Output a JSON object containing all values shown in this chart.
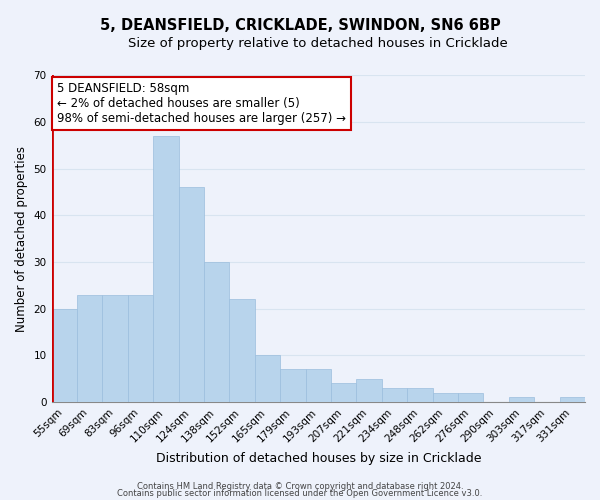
{
  "title": "5, DEANSFIELD, CRICKLADE, SWINDON, SN6 6BP",
  "subtitle": "Size of property relative to detached houses in Cricklade",
  "xlabel": "Distribution of detached houses by size in Cricklade",
  "ylabel": "Number of detached properties",
  "categories": [
    "55sqm",
    "69sqm",
    "83sqm",
    "96sqm",
    "110sqm",
    "124sqm",
    "138sqm",
    "152sqm",
    "165sqm",
    "179sqm",
    "193sqm",
    "207sqm",
    "221sqm",
    "234sqm",
    "248sqm",
    "262sqm",
    "276sqm",
    "290sqm",
    "303sqm",
    "317sqm",
    "331sqm"
  ],
  "values": [
    20,
    23,
    23,
    23,
    57,
    46,
    30,
    22,
    10,
    7,
    7,
    4,
    5,
    3,
    3,
    2,
    2,
    0,
    1,
    0,
    1
  ],
  "bar_color": "#b8d4ec",
  "bar_edge_color": "#9bbedd",
  "red_line_color": "#cc0000",
  "ylim": [
    0,
    70
  ],
  "yticks": [
    0,
    10,
    20,
    30,
    40,
    50,
    60,
    70
  ],
  "annotation_text": "5 DEANSFIELD: 58sqm\n← 2% of detached houses are smaller (5)\n98% of semi-detached houses are larger (257) →",
  "annotation_box_edge_color": "#cc0000",
  "annotation_box_face_color": "#ffffff",
  "footer_line1": "Contains HM Land Registry data © Crown copyright and database right 2024.",
  "footer_line2": "Contains public sector information licensed under the Open Government Licence v3.0.",
  "background_color": "#eef2fb",
  "grid_color": "#d8e4f0",
  "title_fontsize": 10.5,
  "subtitle_fontsize": 9.5,
  "xlabel_fontsize": 9,
  "ylabel_fontsize": 8.5,
  "tick_fontsize": 7.5,
  "footer_fontsize": 6,
  "annotation_fontsize": 8.5
}
